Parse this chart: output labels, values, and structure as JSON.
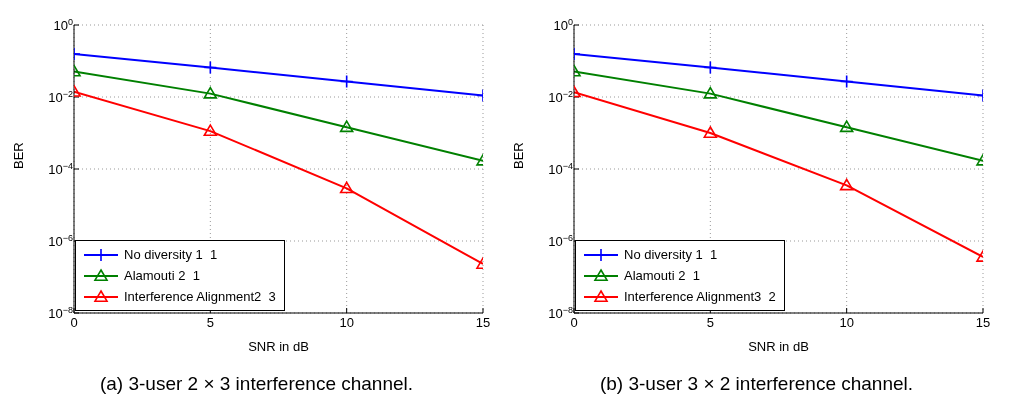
{
  "chart_data": [
    {
      "type": "line",
      "title": "(a)  3-user 2 × 3 interference channel.",
      "xlabel": "SNR in dB",
      "ylabel": "BER",
      "x": [
        0,
        5,
        10,
        15
      ],
      "log": "y",
      "grid": true,
      "legend": "bottom left",
      "line_style": "solid",
      "xlim": [
        0,
        15
      ],
      "xticks": [
        0,
        5,
        10,
        15
      ],
      "ylim": [
        1e-08,
        1
      ],
      "yticks": [
        {
          "value": 1e-08,
          "label": "10$^{−8}$"
        },
        {
          "value": 1e-06,
          "label": "10$^{−6}$"
        },
        {
          "value": 0.0001,
          "label": "10$^{−4}$"
        },
        {
          "value": 0.01,
          "label": "10$^{−2}$"
        },
        {
          "value": 1,
          "label": "10$^{0}$"
        }
      ],
      "series": [
        {
          "name": "No diversity 1  1",
          "color": "#0000ff",
          "marker": "cross",
          "values": [
            0.156,
            0.066,
            0.027,
            0.011
          ]
        },
        {
          "name": "Alamouti 2  1",
          "color": "#008000",
          "marker": "triangle",
          "values": [
            0.051,
            0.0124,
            0.00145,
            0.00017
          ]
        },
        {
          "name": "Interference Alignment2  3",
          "color": "#ff0000",
          "marker": "triangle",
          "values": [
            0.014,
            0.00113,
            2.9e-05,
            2.3e-07
          ]
        }
      ]
    },
    {
      "type": "line",
      "title": "(b)  3-user 3 × 2 interference channel.",
      "xlabel": "SNR in dB",
      "ylabel": "BER",
      "x": [
        0,
        5,
        10,
        15
      ],
      "log": "y",
      "grid": true,
      "legend": "bottom left",
      "line_style": "solid",
      "xlim": [
        0,
        15
      ],
      "xticks": [
        0,
        5,
        10,
        15
      ],
      "ylim": [
        1e-08,
        1
      ],
      "yticks": [
        {
          "value": 1e-08,
          "label": "10$^{−8}$"
        },
        {
          "value": 1e-06,
          "label": "10$^{−6}$"
        },
        {
          "value": 0.0001,
          "label": "10$^{−4}$"
        },
        {
          "value": 0.01,
          "label": "10$^{−2}$"
        },
        {
          "value": 1,
          "label": "10$^{0}$"
        }
      ],
      "series": [
        {
          "name": "No diversity 1  1",
          "color": "#0000ff",
          "marker": "cross",
          "values": [
            0.156,
            0.066,
            0.027,
            0.011
          ]
        },
        {
          "name": "Alamouti 2  1",
          "color": "#008000",
          "marker": "triangle",
          "values": [
            0.051,
            0.0124,
            0.00145,
            0.00017
          ]
        },
        {
          "name": "Interference Alignment3  2",
          "color": "#ff0000",
          "marker": "triangle",
          "values": [
            0.0135,
            0.001,
            3.5e-05,
            3.6e-07
          ]
        }
      ]
    }
  ]
}
